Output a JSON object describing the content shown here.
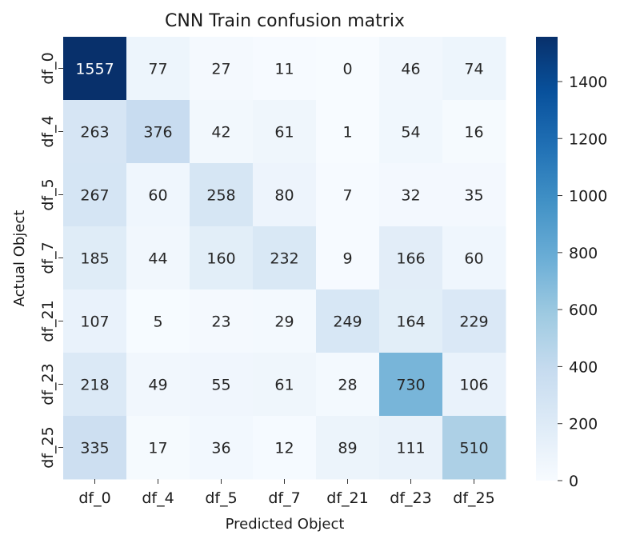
{
  "chart_data": {
    "type": "heatmap",
    "title": "CNN Train confusion matrix",
    "xlabel": "Predicted Object",
    "ylabel": "Actual Object",
    "x_categories": [
      "df_0",
      "df_4",
      "df_5",
      "df_7",
      "df_21",
      "df_23",
      "df_25"
    ],
    "y_categories": [
      "df_0",
      "df_4",
      "df_5",
      "df_7",
      "df_21",
      "df_23",
      "df_25"
    ],
    "values": [
      [
        1557,
        77,
        27,
        11,
        0,
        46,
        74
      ],
      [
        263,
        376,
        42,
        61,
        1,
        54,
        16
      ],
      [
        267,
        60,
        258,
        80,
        7,
        32,
        35
      ],
      [
        185,
        44,
        160,
        232,
        9,
        166,
        60
      ],
      [
        107,
        5,
        23,
        29,
        249,
        164,
        229
      ],
      [
        218,
        49,
        55,
        61,
        28,
        730,
        106
      ],
      [
        335,
        17,
        36,
        12,
        89,
        111,
        510
      ]
    ],
    "colormap": "Blues",
    "vmin": 0,
    "vmax": 1557,
    "colorbar_ticks": [
      0,
      200,
      400,
      600,
      800,
      1000,
      1200,
      1400
    ]
  }
}
